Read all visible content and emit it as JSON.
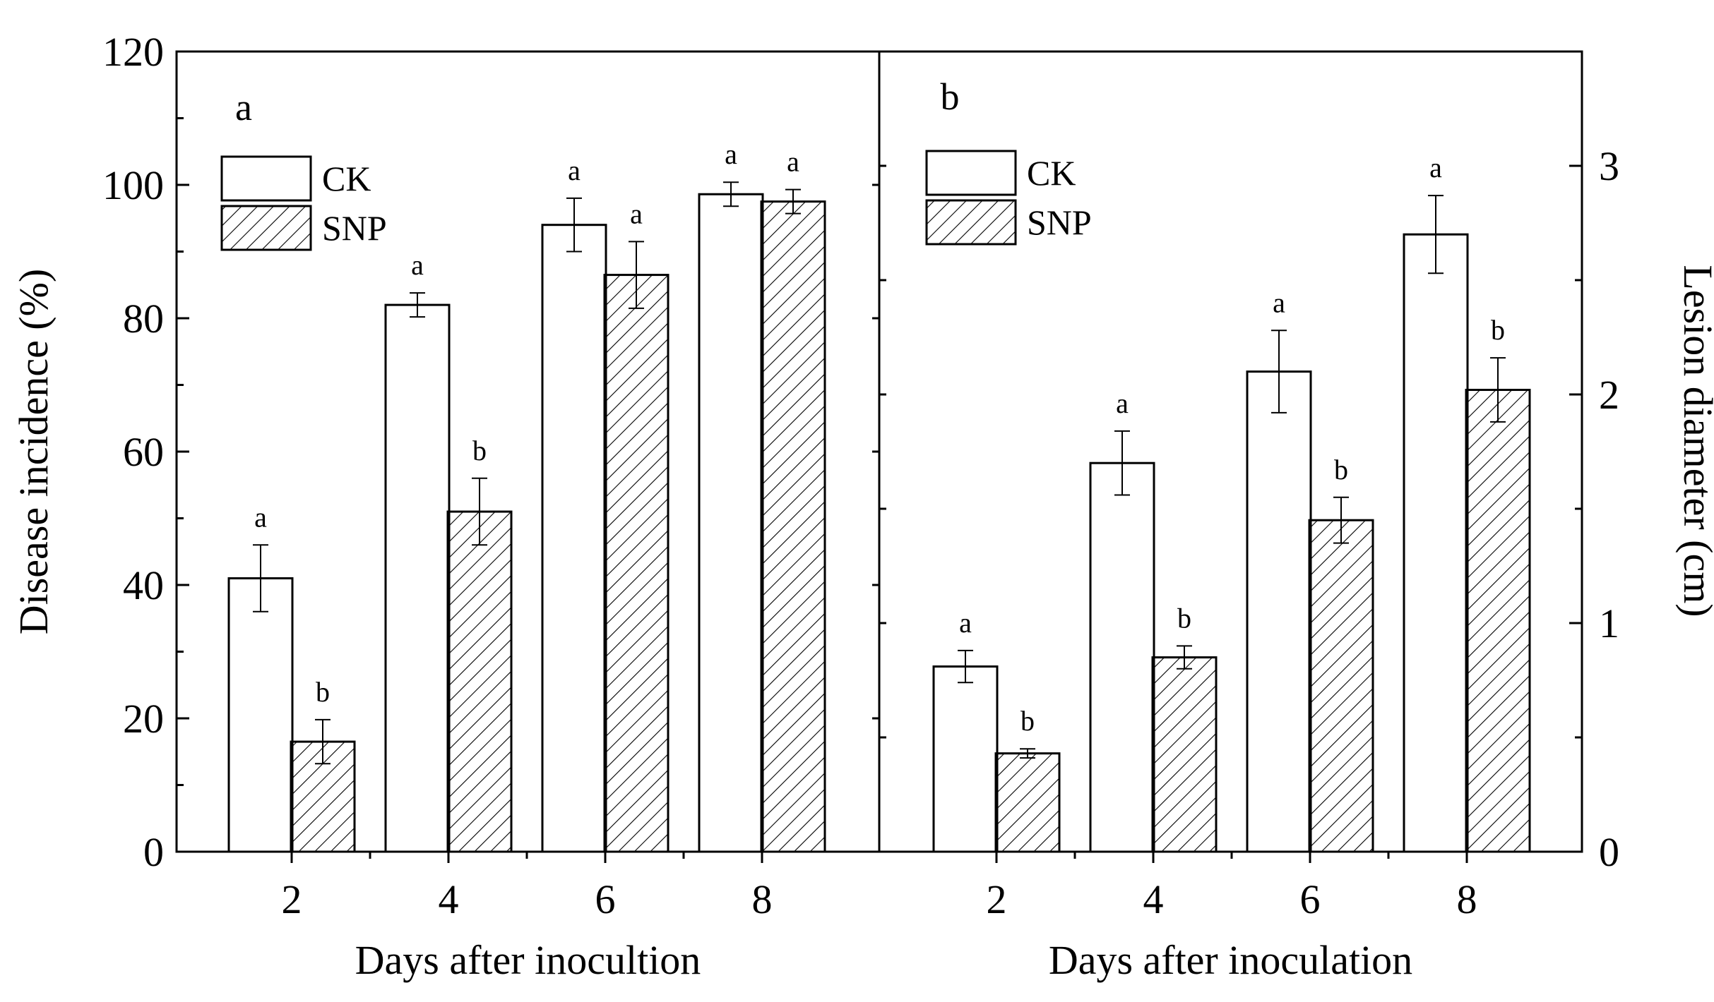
{
  "chart_data": [
    {
      "type": "bar",
      "panel_label": "a",
      "title": "",
      "xlabel": "Days after inocultion",
      "ylabel": "Disease incidence (%)",
      "categories": [
        "2",
        "4",
        "6",
        "8"
      ],
      "ylim": [
        0,
        120
      ],
      "yticks": [
        0,
        20,
        40,
        60,
        80,
        100,
        120
      ],
      "ytick_labels": [
        "0",
        "20",
        "40",
        "60",
        "80",
        "100",
        "120"
      ],
      "legend_position": "upper-left",
      "series": [
        {
          "name": "CK",
          "fill": "open",
          "values": [
            41,
            82,
            94,
            98.6
          ],
          "errors": [
            5,
            1.8,
            4,
            1.8
          ],
          "letters": [
            "a",
            "a",
            "a",
            "a"
          ]
        },
        {
          "name": "SNP",
          "fill": "hatched",
          "values": [
            16.5,
            51,
            86.5,
            97.5
          ],
          "errors": [
            3.3,
            5,
            5,
            1.8
          ],
          "letters": [
            "b",
            "b",
            "a",
            "a"
          ]
        }
      ]
    },
    {
      "type": "bar",
      "panel_label": "b",
      "title": "",
      "xlabel": "Days after inoculation",
      "ylabel": "Lesion diameter (cm)",
      "categories": [
        "2",
        "4",
        "6",
        "8"
      ],
      "ylim": [
        0,
        3.5
      ],
      "yticks": [
        0,
        1,
        2,
        3
      ],
      "ytick_labels": [
        "0",
        "1",
        "2",
        "3"
      ],
      "legend_position": "upper-left",
      "series": [
        {
          "name": "CK",
          "fill": "open",
          "values": [
            0.81,
            1.7,
            2.1,
            2.7
          ],
          "errors": [
            0.07,
            0.14,
            0.18,
            0.17
          ],
          "letters": [
            "a",
            "a",
            "a",
            "a"
          ]
        },
        {
          "name": "SNP",
          "fill": "hatched",
          "values": [
            0.43,
            0.85,
            1.45,
            2.02
          ],
          "errors": [
            0.02,
            0.05,
            0.1,
            0.14
          ],
          "letters": [
            "b",
            "b",
            "b",
            "b"
          ]
        }
      ]
    }
  ],
  "colors": {
    "ink": "#000000",
    "background": "#ffffff"
  }
}
